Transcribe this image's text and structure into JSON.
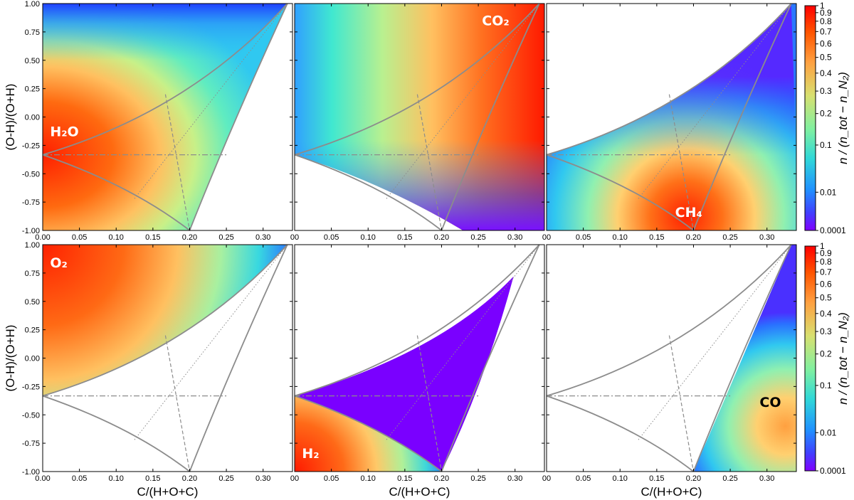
{
  "chart_data": {
    "type": "heatmap",
    "layout": "2x3 grid of ternary-composition heatmaps with shared color scale",
    "x_axis": {
      "label": "C/(H+O+C)",
      "range": [
        0,
        0.34
      ],
      "ticks_left_column": [
        "0.00",
        "0.05",
        "0.10",
        "0.15",
        "0.20",
        "0.25",
        "0.30"
      ],
      "ticks_other_columns": [
        "00",
        "0.05",
        "0.10",
        "0.15",
        "0.20",
        "0.25",
        "0.30"
      ],
      "tick_values": [
        0,
        0.05,
        0.1,
        0.15,
        0.2,
        0.25,
        0.3
      ]
    },
    "y_axis": {
      "label": "(O-H)/(O+H)",
      "range": [
        -1,
        1
      ],
      "ticks": [
        "1.00",
        "0.75",
        "0.50",
        "0.25",
        "0.00",
        "-0.25",
        "-0.50",
        "-0.75",
        "-1.00"
      ],
      "tick_values": [
        1,
        0.75,
        0.5,
        0.25,
        0,
        -0.25,
        -0.5,
        -0.75,
        -1
      ]
    },
    "colorbar": {
      "label": "n / (n_tot − n_N₂)",
      "scale": "log-like",
      "colormap": "rainbow",
      "ticks": [
        "1",
        "0.9",
        "0.8",
        "0.7",
        "0.6",
        "0.5",
        "0.4",
        "0.3",
        "0.2",
        "0.1",
        "0.01",
        "0.0001"
      ],
      "tick_positions": [
        0,
        0.031,
        0.069,
        0.115,
        0.17,
        0.23,
        0.3,
        0.38,
        0.48,
        0.62,
        0.83,
        1
      ]
    },
    "series": [
      {
        "name": "H₂O",
        "peak": "left vertex (0, -0.33)",
        "valid_region": "upper-left, below lower hull"
      },
      {
        "name": "CO₂",
        "peak": "top-right vertex",
        "valid_region": "upper side"
      },
      {
        "name": "CH₄",
        "peak": "bottom vertex (0.2, -1)",
        "valid_region": "below upper hull"
      },
      {
        "name": "O₂",
        "peak": "top-left corner",
        "valid_region": "above upper hull"
      },
      {
        "name": "H₂",
        "peak": "bottom-left corner",
        "valid_region": "below lower hull; ~0.0001 inside lens"
      },
      {
        "name": "CO",
        "peak": "right edge near (0.32, -0.6)",
        "valid_region": "right of line from (0.2,-1) to (0.34,1)"
      }
    ],
    "overlay_lines": [
      "solid hull curves",
      "dashed",
      "dotted",
      "dash-dot horizontal at y=-0.33"
    ]
  },
  "labels": {
    "panel1": "H₂O",
    "panel2": "CO₂",
    "panel3": "CH₄",
    "panel4": "O₂",
    "panel5": "H₂",
    "panel6": "CO",
    "colorbar_top": "n / (n_tot − n_N₂)",
    "colorbar_bottom": "n / (n_tot − n_N₂)"
  },
  "colors": {
    "overlay": "#8c8c8c",
    "species_light": "#ffffff",
    "species_dark": "#000000"
  }
}
